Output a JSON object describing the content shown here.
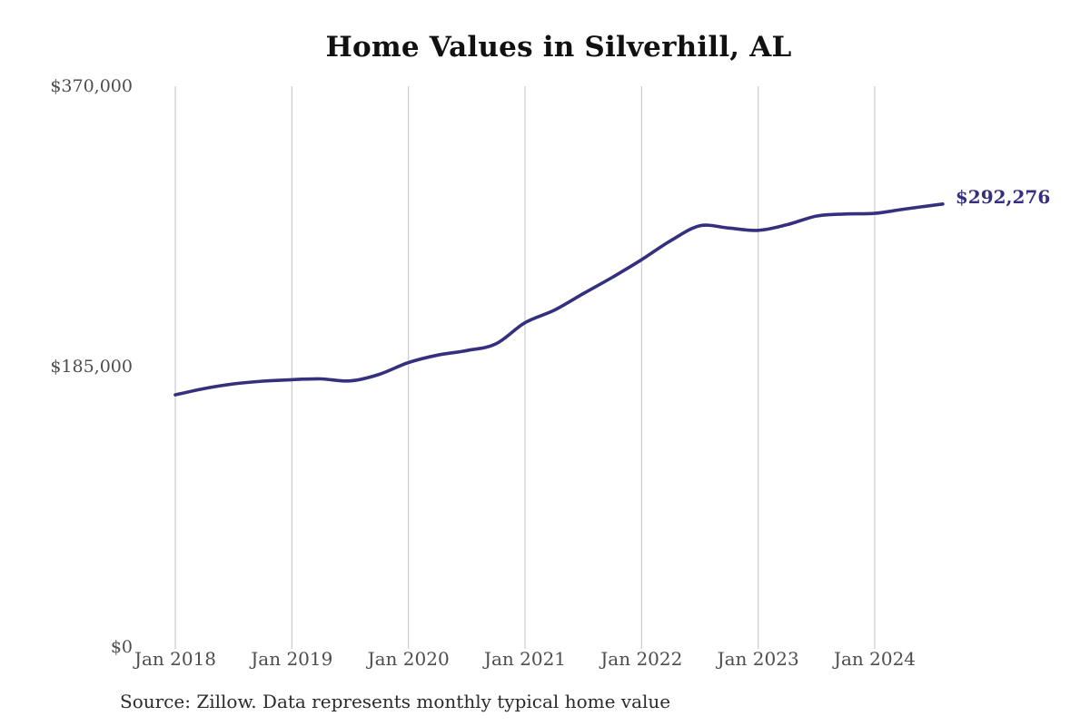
{
  "chart_data": {
    "type": "line",
    "title": "Home Values in Silverhill, AL",
    "xlabel": "",
    "ylabel": "",
    "legend": "none",
    "grid": "vertical-only",
    "ylim": [
      0,
      370000
    ],
    "x_ticks": [
      "Jan 2018",
      "Jan 2019",
      "Jan 2020",
      "Jan 2021",
      "Jan 2022",
      "Jan 2023",
      "Jan 2024"
    ],
    "y_ticks": [
      {
        "label": "$370,000",
        "value": 370000
      },
      {
        "label": "$185,000",
        "value": 185000
      },
      {
        "label": "$0",
        "value": 0
      }
    ],
    "end_label": "$292,276",
    "end_value": 292276,
    "series": [
      {
        "name": "Monthly typical home value",
        "points": [
          {
            "date": "Jan 2018",
            "value": 166400
          },
          {
            "date": "Apr 2018",
            "value": 170600
          },
          {
            "date": "Jul 2018",
            "value": 173600
          },
          {
            "date": "Oct 2018",
            "value": 175400
          },
          {
            "date": "Jan 2019",
            "value": 176400
          },
          {
            "date": "Apr 2019",
            "value": 176900
          },
          {
            "date": "Jul 2019",
            "value": 175600
          },
          {
            "date": "Oct 2019",
            "value": 179900
          },
          {
            "date": "Jan 2020",
            "value": 187700
          },
          {
            "date": "Apr 2020",
            "value": 192600
          },
          {
            "date": "Jul 2020",
            "value": 195600
          },
          {
            "date": "Oct 2020",
            "value": 200000
          },
          {
            "date": "Jan 2021",
            "value": 214000
          },
          {
            "date": "Apr 2021",
            "value": 222200
          },
          {
            "date": "Jul 2021",
            "value": 233200
          },
          {
            "date": "Oct 2021",
            "value": 244000
          },
          {
            "date": "Jan 2022",
            "value": 255500
          },
          {
            "date": "Apr 2022",
            "value": 268100
          },
          {
            "date": "Jul 2022",
            "value": 277900
          },
          {
            "date": "Oct 2022",
            "value": 276400
          },
          {
            "date": "Jan 2023",
            "value": 274900
          },
          {
            "date": "Apr 2023",
            "value": 278700
          },
          {
            "date": "Jul 2023",
            "value": 284300
          },
          {
            "date": "Oct 2023",
            "value": 285700
          },
          {
            "date": "Jan 2024",
            "value": 286100
          },
          {
            "date": "Apr 2024",
            "value": 288900
          },
          {
            "date": "Aug 2024",
            "value": 292276
          }
        ]
      }
    ]
  },
  "source": {
    "text": "Source: Zillow. Data represents monthly typical home value"
  },
  "colors": {
    "background": "#ffffff",
    "title": "#111111",
    "line": "#34307e",
    "end_label": "#34307e",
    "grid": "#cbcbcb",
    "axis_labels": "#4d4d4d",
    "source": "#2b2b2b"
  }
}
